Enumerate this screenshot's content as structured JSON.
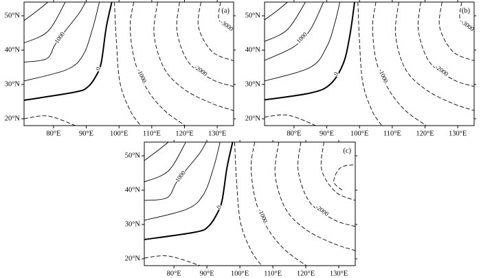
{
  "chart_data": [
    {
      "type": "contour",
      "label": "(a)",
      "xlim": [
        71,
        135
      ],
      "ylim": [
        18,
        54
      ],
      "xticks": [
        {
          "value": 80,
          "label": "80°E"
        },
        {
          "value": 90,
          "label": "90°E"
        },
        {
          "value": 100,
          "label": "100°E"
        },
        {
          "value": 110,
          "label": "110°E"
        },
        {
          "value": 120,
          "label": "120°E"
        },
        {
          "value": 130,
          "label": "130°E"
        }
      ],
      "yticks": [
        {
          "value": 20,
          "label": "20°N"
        },
        {
          "value": 30,
          "label": "30°N"
        },
        {
          "value": 40,
          "label": "40°N"
        },
        {
          "value": 50,
          "label": "50°N"
        }
      ],
      "contours": [
        {
          "level": 0,
          "lon": [
            71,
            86.7,
            90.5,
            93,
            94.6,
            96.1,
            97.8
          ],
          "lat": [
            25.4,
            27.8,
            29.3,
            32.5,
            36.5,
            46.6,
            54
          ]
        },
        {
          "level": 500,
          "lon": [
            71,
            84,
            89,
            92,
            94
          ],
          "lat": [
            31,
            34.3,
            38.5,
            46.5,
            54
          ]
        },
        {
          "level": 1000,
          "lon": [
            71,
            77.9,
            80.4,
            83.6,
            87.7,
            89.8
          ],
          "lat": [
            36.5,
            37.5,
            41.5,
            45.6,
            50.6,
            54
          ]
        },
        {
          "level": 1500,
          "lon": [
            71,
            78.3,
            83.6
          ],
          "lat": [
            42.1,
            45.5,
            54
          ]
        },
        {
          "level": 2000,
          "lon": [
            71,
            75.2,
            78.3
          ],
          "lat": [
            48.6,
            51.6,
            54
          ]
        },
        {
          "level": -500,
          "lon": [
            71,
            78.3,
            86.7
          ],
          "lat": [
            20,
            20.8,
            18
          ]
        },
        {
          "level": -500,
          "lon": [
            98.6,
            99.2,
            100.3,
            103.4,
            106.6
          ],
          "lat": [
            54,
            42.5,
            30.5,
            22.4,
            18
          ]
        },
        {
          "level": -1000,
          "lon": [
            104.5,
            103.4,
            104.9,
            108.7,
            113.9,
            120.2
          ],
          "lat": [
            54,
            46.6,
            36.5,
            28.4,
            22.4,
            18
          ]
        },
        {
          "level": -1500,
          "lon": [
            111.8,
            110.7,
            113.9,
            120.2,
            128.5,
            135
          ],
          "lat": [
            54,
            44.5,
            34.5,
            28.4,
            24.4,
            22.4
          ]
        },
        {
          "level": -2000,
          "lon": [
            118.5,
            117.7,
            121.2,
            128.5,
            135
          ],
          "lat": [
            54,
            45.6,
            36.5,
            31.4,
            29.4
          ]
        },
        {
          "level": -2500,
          "lon": [
            125,
            124.3,
            128.5,
            135
          ],
          "lat": [
            54,
            46.6,
            39.5,
            36.9
          ]
        },
        {
          "level": -3000,
          "lon": [
            131,
            130.6,
            135
          ],
          "lat": [
            54,
            48.6,
            45.5
          ]
        }
      ],
      "contour_labels": [
        1000,
        0,
        -1000,
        -2000,
        -3000
      ]
    },
    {
      "type": "contour",
      "label": "(b)",
      "xlim": [
        71,
        135
      ],
      "ylim": [
        18,
        54
      ],
      "xticks": [
        {
          "value": 80,
          "label": "80°E"
        },
        {
          "value": 90,
          "label": "90°E"
        },
        {
          "value": 100,
          "label": "100°E"
        },
        {
          "value": 110,
          "label": "110°E"
        },
        {
          "value": 120,
          "label": "120°E"
        },
        {
          "value": 130,
          "label": "130°E"
        }
      ],
      "yticks": [
        {
          "value": 20,
          "label": "20°N"
        },
        {
          "value": 30,
          "label": "30°N"
        },
        {
          "value": 40,
          "label": "40°N"
        },
        {
          "value": 50,
          "label": "50°N"
        }
      ],
      "contours": [
        {
          "level": 0,
          "lon": [
            71,
            85,
            91,
            95,
            97,
            98.5
          ],
          "lat": [
            25.5,
            27.5,
            30,
            36,
            44,
            54
          ]
        },
        {
          "level": 500,
          "lon": [
            71,
            85,
            90,
            92.5,
            94
          ],
          "lat": [
            31,
            35,
            41,
            48,
            54
          ]
        },
        {
          "level": 1000,
          "lon": [
            71,
            80,
            85,
            89
          ],
          "lat": [
            37,
            41,
            46,
            54
          ]
        },
        {
          "level": 1500,
          "lon": [
            71,
            78,
            83.5
          ],
          "lat": [
            42.5,
            46,
            54
          ]
        },
        {
          "level": 2000,
          "lon": [
            71,
            75,
            78
          ],
          "lat": [
            48.8,
            51.6,
            54
          ]
        },
        {
          "level": -500,
          "lon": [
            71,
            78.3,
            86.7
          ],
          "lat": [
            20.5,
            21,
            18
          ]
        },
        {
          "level": -500,
          "lon": [
            99.5,
            100,
            101,
            103.8,
            106.8
          ],
          "lat": [
            54,
            42.5,
            30.5,
            22.4,
            18
          ]
        },
        {
          "level": -1000,
          "lon": [
            105,
            104,
            105.2,
            109,
            114,
            120.4
          ],
          "lat": [
            54,
            46.6,
            36.5,
            28.4,
            22.4,
            18
          ]
        },
        {
          "level": -1500,
          "lon": [
            112,
            111,
            114,
            120.4,
            128.6,
            135
          ],
          "lat": [
            54,
            44.5,
            34.5,
            28.4,
            24.4,
            22.4
          ]
        },
        {
          "level": -2000,
          "lon": [
            118.7,
            118,
            121.4,
            128.6,
            135
          ],
          "lat": [
            54,
            45.6,
            36.5,
            31.4,
            29.4
          ]
        },
        {
          "level": -2500,
          "lon": [
            125.2,
            124.5,
            128.6,
            135
          ],
          "lat": [
            54,
            46.6,
            39.5,
            36.9
          ]
        },
        {
          "level": -3000,
          "lon": [
            131.2,
            130.8,
            135
          ],
          "lat": [
            54,
            48.6,
            45.5
          ]
        }
      ],
      "contour_labels": [
        1000,
        0,
        -1000,
        -2000,
        -3000
      ]
    },
    {
      "type": "contour",
      "label": "(c)",
      "xlim": [
        71,
        135
      ],
      "ylim": [
        18,
        54
      ],
      "xticks": [
        {
          "value": 80,
          "label": "80°E"
        },
        {
          "value": 90,
          "label": "90°E"
        },
        {
          "value": 100,
          "label": "100°E"
        },
        {
          "value": 110,
          "label": "110°E"
        },
        {
          "value": 120,
          "label": "120°E"
        },
        {
          "value": 130,
          "label": "130°E"
        }
      ],
      "yticks": [
        {
          "value": 20,
          "label": "20°N"
        },
        {
          "value": 30,
          "label": "30°N"
        },
        {
          "value": 40,
          "label": "40°N"
        },
        {
          "value": 50,
          "label": "50°N"
        }
      ],
      "contours": [
        {
          "level": 0,
          "lon": [
            71,
            86.7,
            90.5,
            93,
            94.6,
            96.1,
            97.8
          ],
          "lat": [
            25.6,
            27.8,
            29.5,
            33,
            37,
            46.6,
            54
          ]
        },
        {
          "level": 500,
          "lon": [
            71,
            84,
            89,
            92,
            94
          ],
          "lat": [
            31.2,
            34.5,
            38.8,
            46.5,
            54
          ]
        },
        {
          "level": 1000,
          "lon": [
            71,
            77.9,
            80.6,
            83.6,
            87.7,
            89.8
          ],
          "lat": [
            37,
            37.8,
            42,
            45.8,
            50.6,
            54
          ]
        },
        {
          "level": 1500,
          "lon": [
            71,
            78.3,
            83.6
          ],
          "lat": [
            42.4,
            45.6,
            54
          ]
        },
        {
          "level": 2000,
          "lon": [
            71,
            75.2,
            78.3
          ],
          "lat": [
            48.6,
            51.6,
            54
          ]
        },
        {
          "level": -500,
          "lon": [
            71,
            78.3,
            88
          ],
          "lat": [
            20.2,
            20.8,
            18
          ]
        },
        {
          "level": -500,
          "lon": [
            98.4,
            99,
            100.2,
            103.4,
            106.6
          ],
          "lat": [
            54,
            42.5,
            30.5,
            22.4,
            18
          ]
        },
        {
          "level": -1000,
          "lon": [
            104.5,
            103.4,
            104.9,
            108.7,
            113.9,
            120.2
          ],
          "lat": [
            54,
            46.6,
            36.5,
            28.4,
            22.4,
            18
          ]
        },
        {
          "level": -1500,
          "lon": [
            111.8,
            110.7,
            113.9,
            120.2,
            128.5,
            135
          ],
          "lat": [
            54,
            44.5,
            34.5,
            28.4,
            24.4,
            22.4
          ]
        },
        {
          "level": -2000,
          "lon": [
            118.5,
            117.7,
            121.2,
            128.5,
            135
          ],
          "lat": [
            54,
            45.6,
            36.5,
            31.4,
            29.4
          ]
        },
        {
          "level": -2500,
          "lon": [
            125.5,
            124.8,
            129,
            135
          ],
          "lat": [
            54,
            46,
            39.5,
            37
          ]
        },
        {
          "level": -3000,
          "lon": [
            131,
            128.5,
            130.5,
            135
          ],
          "lat": [
            40,
            42.5,
            46.5,
            47.5
          ]
        }
      ],
      "contour_labels": [
        1000,
        0,
        -1000,
        -2000
      ]
    }
  ]
}
